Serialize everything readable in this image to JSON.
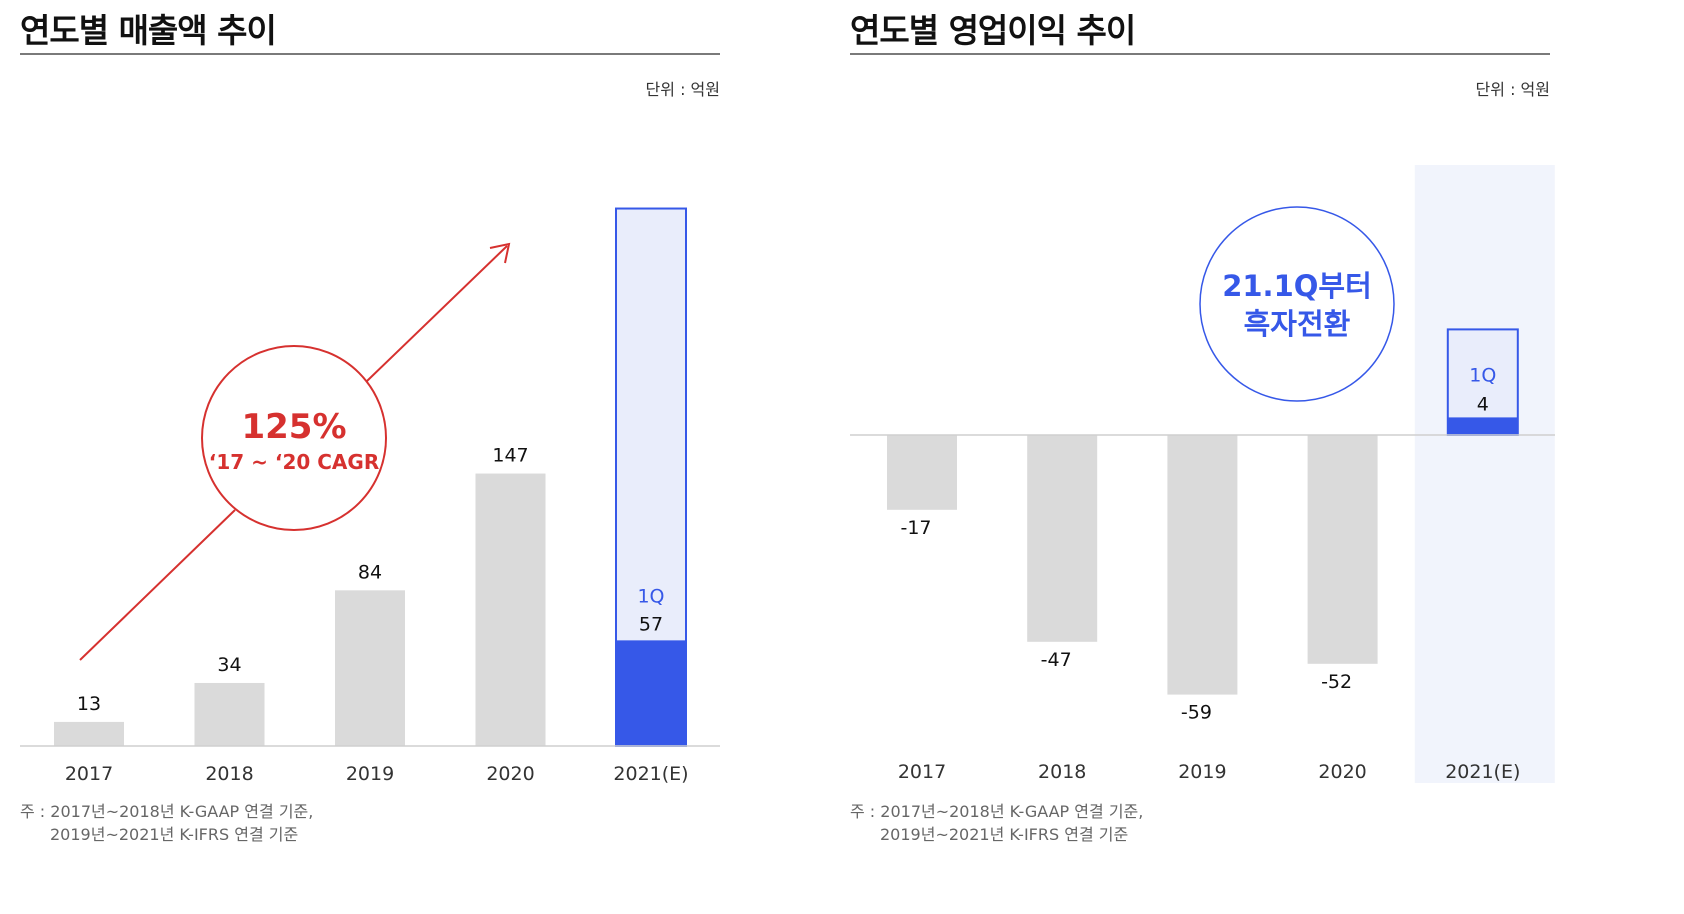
{
  "colors": {
    "bar_gray": "#dadada",
    "accent_blue": "#3658e8",
    "blue_fill_light": "#e9edfb",
    "highlight_col": "#f1f4fc",
    "arrow_red": "#d6312f",
    "baseline": "#cfcfcf"
  },
  "chart_data": [
    {
      "type": "bar",
      "title": "연도별 매출액 추이",
      "unit": "단위 : 억원",
      "categories": [
        "2017",
        "2018",
        "2019",
        "2020",
        "2021(E)"
      ],
      "values": [
        13,
        34,
        84,
        147,
        57
      ],
      "value_labels": [
        "13",
        "34",
        "84",
        "147",
        "57"
      ],
      "forecast_index": 4,
      "forecast_marker": "1Q",
      "forecast_full_value": 290,
      "ylim": [
        0,
        300
      ],
      "grid": false,
      "annotation": {
        "main": "125%",
        "sub": "‘17 ~ ‘20 CAGR"
      },
      "note": [
        "주 : 2017년~2018년 K-GAAP 연결 기준,",
        "2019년~2021년 K-IFRS 연결 기준"
      ]
    },
    {
      "type": "bar",
      "title": "연도별 영업이익 추이",
      "unit": "단위 : 억원",
      "categories": [
        "2017",
        "2018",
        "2019",
        "2020",
        "2021(E)"
      ],
      "values": [
        -17,
        -47,
        -59,
        -52,
        4
      ],
      "value_labels": [
        "-17",
        "-47",
        "-59",
        "-52",
        "4"
      ],
      "forecast_index": 4,
      "forecast_marker": "1Q",
      "forecast_full_value": 24,
      "ylim": [
        -60,
        60
      ],
      "grid": false,
      "annotation": {
        "line1": "21.1Q부터",
        "line2": "흑자전환"
      },
      "note": [
        "주 : 2017년~2018년 K-GAAP 연결 기준,",
        "2019년~2021년 K-IFRS 연결 기준"
      ]
    }
  ]
}
